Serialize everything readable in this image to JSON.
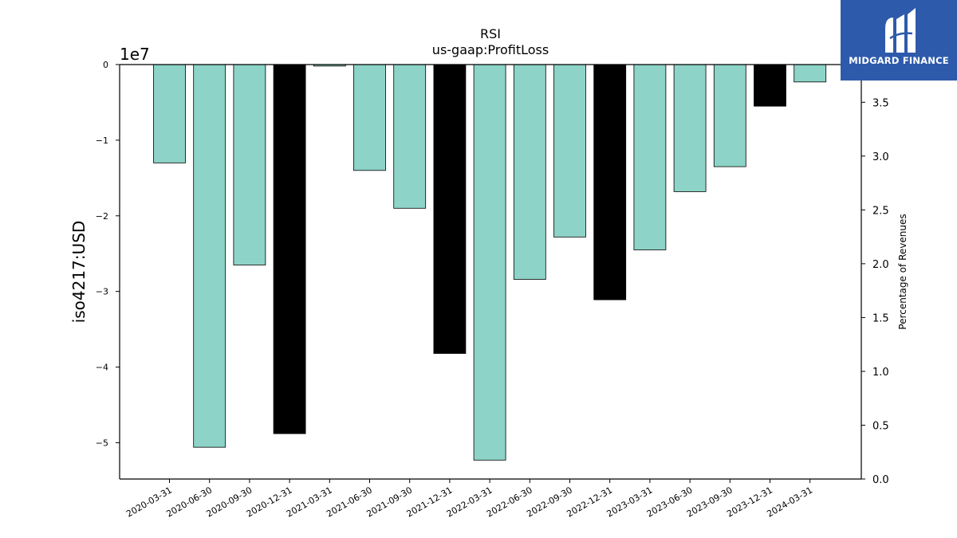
{
  "chart_data": {
    "type": "bar",
    "title": "RSI",
    "subtitle": "us-gaap:ProfitLoss",
    "ylabel": "iso4217:USD",
    "y_offset_label": "1e7",
    "y2label": "Percentage of Revenues",
    "ylim": [
      -5.48,
      0
    ],
    "y_ticks": [
      0,
      -1,
      -2,
      -3,
      -4,
      -5
    ],
    "y_tick_labels": [
      "0",
      "−1",
      "−2",
      "−3",
      "−4",
      "−5"
    ],
    "y2lim": [
      0,
      3.85
    ],
    "y2_ticks": [
      0.0,
      0.5,
      1.0,
      1.5,
      2.0,
      2.5,
      3.0,
      3.5
    ],
    "y2_tick_labels": [
      "0.0",
      "0.5",
      "1.0",
      "1.5",
      "2.0",
      "2.5",
      "3.0",
      "3.5"
    ],
    "grid": false,
    "categories": [
      "2020-03-31",
      "2020-06-30",
      "2020-09-30",
      "2020-12-31",
      "2021-03-31",
      "2021-06-30",
      "2021-09-30",
      "2021-12-31",
      "2022-03-31",
      "2022-06-30",
      "2022-09-30",
      "2022-12-31",
      "2023-03-31",
      "2023-06-30",
      "2023-09-30",
      "2023-12-31",
      "2024-03-31"
    ],
    "values": [
      -1.3,
      -5.06,
      -2.65,
      -4.88,
      -0.02,
      -1.4,
      -1.9,
      -3.82,
      -5.23,
      -2.84,
      -2.28,
      -3.11,
      -2.45,
      -1.68,
      -1.35,
      -0.55,
      -0.23
    ],
    "bar_colors": [
      "#8dd3c7",
      "#8dd3c7",
      "#8dd3c7",
      "#000000",
      "#8dd3c7",
      "#8dd3c7",
      "#8dd3c7",
      "#000000",
      "#8dd3c7",
      "#8dd3c7",
      "#8dd3c7",
      "#000000",
      "#8dd3c7",
      "#8dd3c7",
      "#8dd3c7",
      "#000000",
      "#8dd3c7"
    ]
  },
  "logo": {
    "text": "MIDGARD FINANCE",
    "background": "#2e5aac",
    "icon": "midgard-logo-mark"
  }
}
